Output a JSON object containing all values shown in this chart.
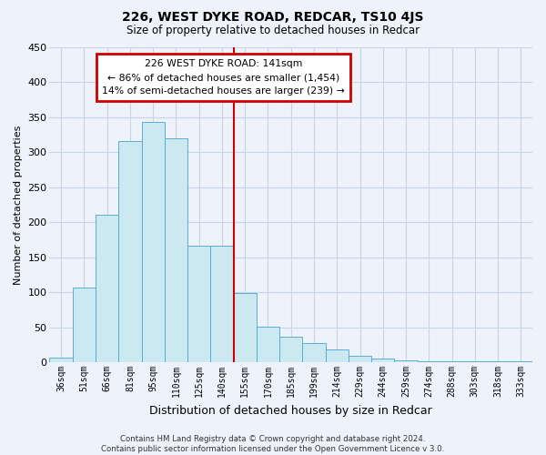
{
  "title": "226, WEST DYKE ROAD, REDCAR, TS10 4JS",
  "subtitle": "Size of property relative to detached houses in Redcar",
  "xlabel": "Distribution of detached houses by size in Redcar",
  "ylabel": "Number of detached properties",
  "footer_line1": "Contains HM Land Registry data © Crown copyright and database right 2024.",
  "footer_line2": "Contains public sector information licensed under the Open Government Licence v 3.0.",
  "annotation_line1": "226 WEST DYKE ROAD: 141sqm",
  "annotation_line2": "← 86% of detached houses are smaller (1,454)",
  "annotation_line3": "14% of semi-detached houses are larger (239) →",
  "bar_labels": [
    "36sqm",
    "51sqm",
    "66sqm",
    "81sqm",
    "95sqm",
    "110sqm",
    "125sqm",
    "140sqm",
    "155sqm",
    "170sqm",
    "185sqm",
    "199sqm",
    "214sqm",
    "229sqm",
    "244sqm",
    "259sqm",
    "274sqm",
    "288sqm",
    "303sqm",
    "318sqm",
    "333sqm"
  ],
  "bar_values": [
    7,
    106,
    210,
    315,
    343,
    320,
    166,
    166,
    99,
    51,
    37,
    28,
    18,
    9,
    5,
    3,
    2,
    1,
    1,
    1,
    1
  ],
  "bar_color": "#cce8f0",
  "bar_edge_color": "#5badd4",
  "vline_x_index": 7,
  "vline_color": "#cc0000",
  "ylim": [
    0,
    450
  ],
  "yticks": [
    0,
    50,
    100,
    150,
    200,
    250,
    300,
    350,
    400,
    450
  ],
  "grid_color": "#c8d4e8",
  "background_color": "#edf2fb"
}
